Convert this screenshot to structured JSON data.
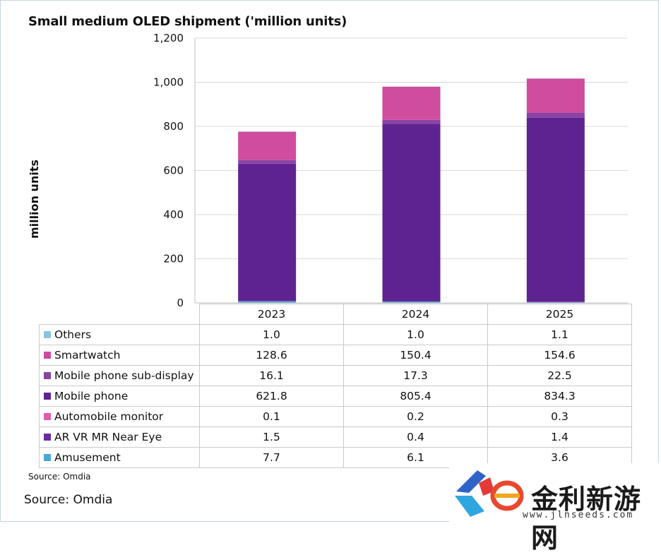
{
  "chart_data": {
    "type": "bar",
    "stacked": true,
    "title": "Small medium OLED shipment ('million units)",
    "ylabel": "million units",
    "ylim": [
      0,
      1200
    ],
    "yticks": [
      "0",
      "200",
      "400",
      "600",
      "800",
      "1,000",
      "1,200"
    ],
    "ytick_values": [
      0,
      200,
      400,
      600,
      800,
      1000,
      1200
    ],
    "grid": true,
    "categories": [
      "2023",
      "2024",
      "2025"
    ],
    "series": [
      {
        "name": "Others",
        "color": "#8fc1e3",
        "values": [
          1.0,
          1.0,
          1.1
        ],
        "labels": [
          "1.0",
          "1.0",
          "1.1"
        ]
      },
      {
        "name": "Smartwatch",
        "color": "#cf4c9e",
        "values": [
          128.6,
          150.4,
          154.6
        ],
        "labels": [
          "128.6",
          "150.4",
          "154.6"
        ]
      },
      {
        "name": "Mobile phone sub-display",
        "color": "#8a43a6",
        "values": [
          16.1,
          17.3,
          22.5
        ],
        "labels": [
          "16.1",
          "17.3",
          "22.5"
        ]
      },
      {
        "name": "Mobile phone",
        "color": "#5f2391",
        "values": [
          621.8,
          805.4,
          834.3
        ],
        "labels": [
          "621.8",
          "805.4",
          "834.3"
        ]
      },
      {
        "name": "Automobile monitor",
        "color": "#e25cb0",
        "values": [
          0.1,
          0.2,
          0.3
        ],
        "labels": [
          "0.1",
          "0.2",
          "0.3"
        ]
      },
      {
        "name": "AR VR MR Near Eye",
        "color": "#6b2aa0",
        "values": [
          1.5,
          0.4,
          1.4
        ],
        "labels": [
          "1.5",
          "0.4",
          "1.4"
        ]
      },
      {
        "name": "Amusement",
        "color": "#4aa6d6",
        "values": [
          7.7,
          6.1,
          3.6
        ],
        "labels": [
          "7.7",
          "6.1",
          "3.6"
        ]
      }
    ]
  },
  "footer": {
    "source_small": "Source: Omdia",
    "source_large": "Source: Omdia"
  },
  "watermark": {
    "text": "金利新游网",
    "url": "www.jlnseeds.com"
  }
}
